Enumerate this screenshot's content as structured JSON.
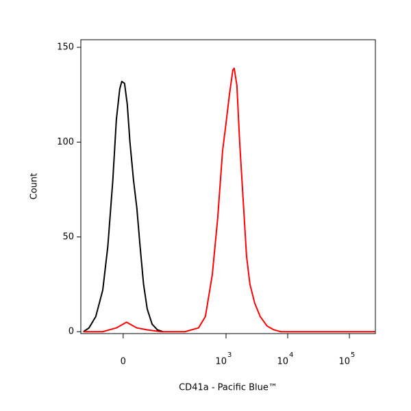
{
  "chart_data": {
    "type": "line",
    "xlabel": "CD41a - Pacific Blue™",
    "ylabel": "Count",
    "xscale": "biexponential",
    "xlim": [
      -100,
      264000
    ],
    "xticks": [
      0,
      {
        "value": 1000,
        "label": "10",
        "power": "3"
      },
      {
        "value": 10000,
        "label": "10",
        "power": "4"
      },
      {
        "value": 100000,
        "label": "10",
        "power": "5"
      }
    ],
    "ylim": [
      -1,
      154
    ],
    "yticks": [
      0,
      50,
      100,
      150
    ],
    "series": [
      {
        "color": "#000000",
        "x": [
          -90,
          -71,
          -52,
          -36,
          -26,
          -17,
          -11,
          -5.5,
          -2.2,
          2.2,
          6.6,
          11,
          17,
          23,
          29,
          36,
          44,
          56,
          71,
          90
        ],
        "values": [
          0,
          2,
          8,
          22,
          45,
          80,
          112,
          128,
          132,
          131,
          120,
          100,
          80,
          65,
          45,
          25,
          12,
          4,
          1,
          0
        ]
      },
      {
        "color": "#ff0000",
        "x": [
          -90,
          -36,
          -23,
          -11,
          0,
          5.5,
          11,
          23,
          44,
          83,
          213,
          357,
          462,
          598,
          733,
          877,
          1000,
          1135,
          1290,
          1355,
          1500,
          1664,
          1892,
          2150,
          2442,
          2924,
          3582,
          4627,
          5977,
          7720,
          260000
        ],
        "values": [
          0,
          0,
          1,
          2,
          4,
          5,
          4,
          2,
          1,
          0,
          0,
          2,
          8,
          30,
          60,
          95,
          110,
          125,
          138,
          139,
          130,
          100,
          70,
          40,
          25,
          15,
          8,
          3,
          1,
          0,
          0
        ]
      }
    ]
  }
}
